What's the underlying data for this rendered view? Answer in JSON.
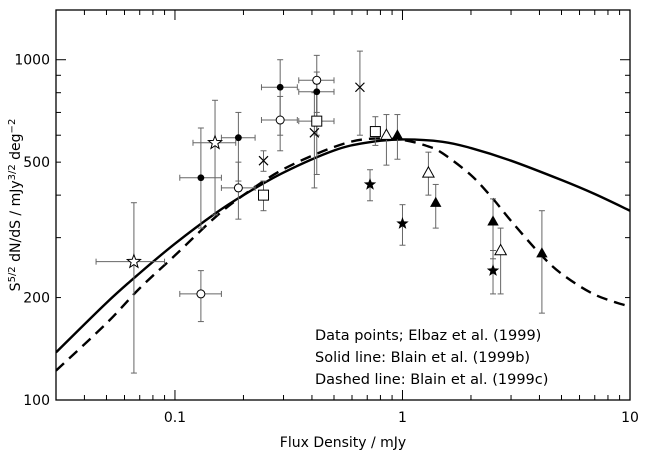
{
  "chart_data": {
    "type": "scatter",
    "xlabel": "Flux Density / mJy",
    "ylabel_parts": {
      "s": "S",
      "s_exp": "5/2",
      "mid": " dN/dS / mJy",
      "mjy_exp": "3/2",
      "deg": " deg",
      "deg_exp": "−2"
    },
    "x_scale": "log",
    "y_scale": "log",
    "xlim": [
      0.03,
      10
    ],
    "ylim": [
      100,
      1400
    ],
    "x_ticks": [
      {
        "value": 0.1,
        "label": "0.1"
      },
      {
        "value": 1,
        "label": "1"
      },
      {
        "value": 10,
        "label": "10"
      }
    ],
    "y_ticks": [
      {
        "value": 100,
        "label": "100"
      },
      {
        "value": 200,
        "label": "200"
      },
      {
        "value": 500,
        "label": "500"
      },
      {
        "value": 1000,
        "label": "1000"
      }
    ],
    "annotations": [
      "Data points; Elbaz et al. (1999)",
      "Solid line: Blain et al. (1999b)",
      "Dashed line: Blain et al. (1999c)"
    ],
    "series": [
      {
        "marker": "filled-circle",
        "points": [
          {
            "x": 0.13,
            "y": 450,
            "ylo": 320,
            "yhi": 630,
            "xlo": 0.105,
            "xhi": 0.16
          },
          {
            "x": 0.19,
            "y": 590,
            "ylo": 440,
            "yhi": 700,
            "xlo": 0.16,
            "xhi": 0.225
          },
          {
            "x": 0.29,
            "y": 830,
            "ylo": 600,
            "yhi": 1000,
            "xlo": 0.24,
            "xhi": 0.345
          },
          {
            "x": 0.42,
            "y": 805,
            "ylo": 600,
            "yhi": 920,
            "xlo": 0.35,
            "xhi": 0.5
          }
        ]
      },
      {
        "marker": "open-circle",
        "points": [
          {
            "x": 0.13,
            "y": 205,
            "ylo": 170,
            "yhi": 240,
            "xlo": 0.105,
            "xhi": 0.16
          },
          {
            "x": 0.19,
            "y": 420,
            "ylo": 340,
            "yhi": 500,
            "xlo": 0.16,
            "xhi": 0.225
          },
          {
            "x": 0.29,
            "y": 665,
            "ylo": 540,
            "yhi": 780,
            "xlo": 0.24,
            "xhi": 0.345
          },
          {
            "x": 0.42,
            "y": 870,
            "ylo": 700,
            "yhi": 1030,
            "xlo": 0.35,
            "xhi": 0.5
          }
        ]
      },
      {
        "marker": "open-star",
        "points": [
          {
            "x": 0.066,
            "y": 255,
            "ylo": 120,
            "yhi": 380,
            "xlo": 0.045,
            "xhi": 0.09
          },
          {
            "x": 0.15,
            "y": 570,
            "ylo": 350,
            "yhi": 760,
            "xlo": 0.12,
            "xhi": 0.185
          }
        ]
      },
      {
        "marker": "x-cross",
        "points": [
          {
            "x": 0.245,
            "y": 505,
            "ylo": 470,
            "yhi": 540
          },
          {
            "x": 0.41,
            "y": 610,
            "ylo": 420,
            "yhi": 800
          },
          {
            "x": 0.65,
            "y": 830,
            "ylo": 600,
            "yhi": 1060
          }
        ]
      },
      {
        "marker": "open-square",
        "points": [
          {
            "x": 0.245,
            "y": 400,
            "ylo": 360,
            "yhi": 440
          },
          {
            "x": 0.42,
            "y": 660,
            "ylo": 460,
            "yhi": 850,
            "xlo": 0.35,
            "xhi": 0.5
          },
          {
            "x": 0.76,
            "y": 615,
            "ylo": 560,
            "yhi": 680
          }
        ]
      },
      {
        "marker": "filled-star",
        "points": [
          {
            "x": 0.72,
            "y": 430,
            "ylo": 385,
            "yhi": 475
          },
          {
            "x": 1.0,
            "y": 330,
            "ylo": 285,
            "yhi": 375
          },
          {
            "x": 2.5,
            "y": 240,
            "ylo": 205,
            "yhi": 275
          }
        ]
      },
      {
        "marker": "open-triangle",
        "points": [
          {
            "x": 0.85,
            "y": 600,
            "ylo": 490,
            "yhi": 690
          },
          {
            "x": 1.3,
            "y": 465,
            "ylo": 400,
            "yhi": 535
          },
          {
            "x": 2.7,
            "y": 275,
            "ylo": 205,
            "yhi": 320
          }
        ]
      },
      {
        "marker": "filled-triangle",
        "points": [
          {
            "x": 0.95,
            "y": 600,
            "ylo": 510,
            "yhi": 690
          },
          {
            "x": 1.4,
            "y": 380,
            "ylo": 320,
            "yhi": 430
          },
          {
            "x": 2.5,
            "y": 335,
            "ylo": 260,
            "yhi": 390
          },
          {
            "x": 4.1,
            "y": 270,
            "ylo": 180,
            "yhi": 360
          }
        ]
      }
    ],
    "curves": [
      {
        "style": "solid",
        "x": [
          0.03,
          0.05,
          0.07,
          0.1,
          0.15,
          0.2,
          0.3,
          0.5,
          0.7,
          1.0,
          1.5,
          2,
          3,
          5,
          7,
          10
        ],
        "y": [
          138,
          193,
          236,
          288,
          353,
          400,
          466,
          541,
          571,
          583,
          574,
          550,
          505,
          443,
          403,
          360
        ]
      },
      {
        "style": "dashed",
        "x": [
          0.03,
          0.05,
          0.07,
          0.1,
          0.15,
          0.2,
          0.3,
          0.5,
          0.7,
          1.0,
          1.3,
          1.5,
          2,
          2.5,
          3,
          4,
          5,
          7,
          10
        ],
        "y": [
          122,
          168,
          213,
          266,
          344,
          400,
          477,
          554,
          585,
          581,
          556,
          531,
          458,
          390,
          336,
          270,
          235,
          204,
          188
        ]
      }
    ]
  }
}
